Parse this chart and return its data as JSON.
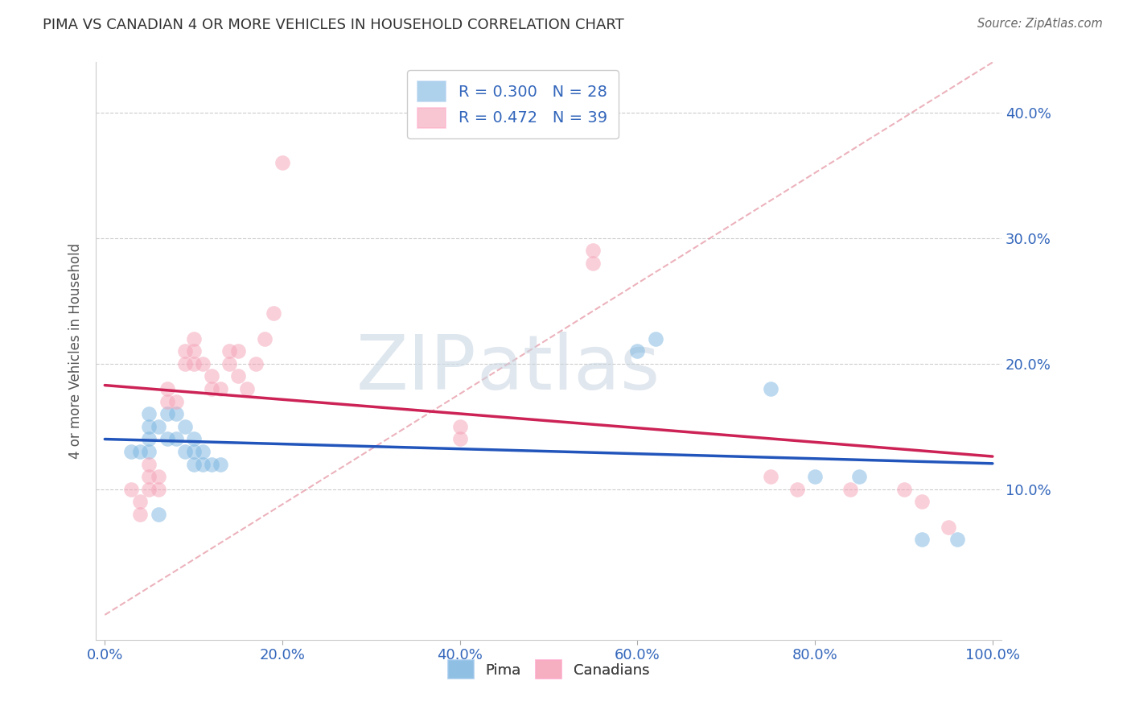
{
  "title": "PIMA VS CANADIAN 4 OR MORE VEHICLES IN HOUSEHOLD CORRELATION CHART",
  "source": "Source: ZipAtlas.com",
  "ylabel_label": "4 or more Vehicles in Household",
  "R_pima": 0.3,
  "N_pima": 28,
  "R_canadian": 0.472,
  "N_canadian": 39,
  "pima_color": "#7ab4e0",
  "canadian_color": "#f4a0b5",
  "pima_line_color": "#2255bb",
  "canadian_line_color": "#cc2255",
  "diagonal_color": "#e08090",
  "background_color": "#ffffff",
  "grid_color": "#cccccc",
  "watermark_zip": "ZIP",
  "watermark_atlas": "atlas",
  "pima_points": [
    [
      3,
      13
    ],
    [
      4,
      13
    ],
    [
      5,
      16
    ],
    [
      5,
      15
    ],
    [
      5,
      14
    ],
    [
      5,
      13
    ],
    [
      6,
      15
    ],
    [
      6,
      8
    ],
    [
      7,
      16
    ],
    [
      7,
      14
    ],
    [
      8,
      16
    ],
    [
      8,
      14
    ],
    [
      9,
      15
    ],
    [
      9,
      13
    ],
    [
      10,
      14
    ],
    [
      10,
      13
    ],
    [
      10,
      12
    ],
    [
      11,
      13
    ],
    [
      11,
      12
    ],
    [
      12,
      12
    ],
    [
      13,
      12
    ],
    [
      60,
      21
    ],
    [
      62,
      22
    ],
    [
      75,
      18
    ],
    [
      80,
      11
    ],
    [
      85,
      11
    ],
    [
      92,
      6
    ],
    [
      96,
      6
    ]
  ],
  "canadian_points": [
    [
      3,
      10
    ],
    [
      4,
      9
    ],
    [
      4,
      8
    ],
    [
      5,
      12
    ],
    [
      5,
      11
    ],
    [
      5,
      10
    ],
    [
      6,
      11
    ],
    [
      6,
      10
    ],
    [
      7,
      18
    ],
    [
      7,
      17
    ],
    [
      8,
      17
    ],
    [
      9,
      21
    ],
    [
      9,
      20
    ],
    [
      10,
      22
    ],
    [
      10,
      21
    ],
    [
      10,
      20
    ],
    [
      11,
      20
    ],
    [
      12,
      19
    ],
    [
      12,
      18
    ],
    [
      13,
      18
    ],
    [
      14,
      21
    ],
    [
      14,
      20
    ],
    [
      15,
      21
    ],
    [
      15,
      19
    ],
    [
      16,
      18
    ],
    [
      17,
      20
    ],
    [
      18,
      22
    ],
    [
      19,
      24
    ],
    [
      20,
      36
    ],
    [
      40,
      15
    ],
    [
      40,
      14
    ],
    [
      55,
      29
    ],
    [
      55,
      28
    ],
    [
      75,
      11
    ],
    [
      78,
      10
    ],
    [
      84,
      10
    ],
    [
      90,
      10
    ],
    [
      92,
      9
    ],
    [
      95,
      7
    ]
  ],
  "xlim": [
    0,
    100
  ],
  "ylim": [
    0,
    44
  ],
  "x_ticks": [
    0,
    20,
    40,
    60,
    80,
    100
  ],
  "y_ticks": [
    10,
    20,
    30,
    40
  ]
}
